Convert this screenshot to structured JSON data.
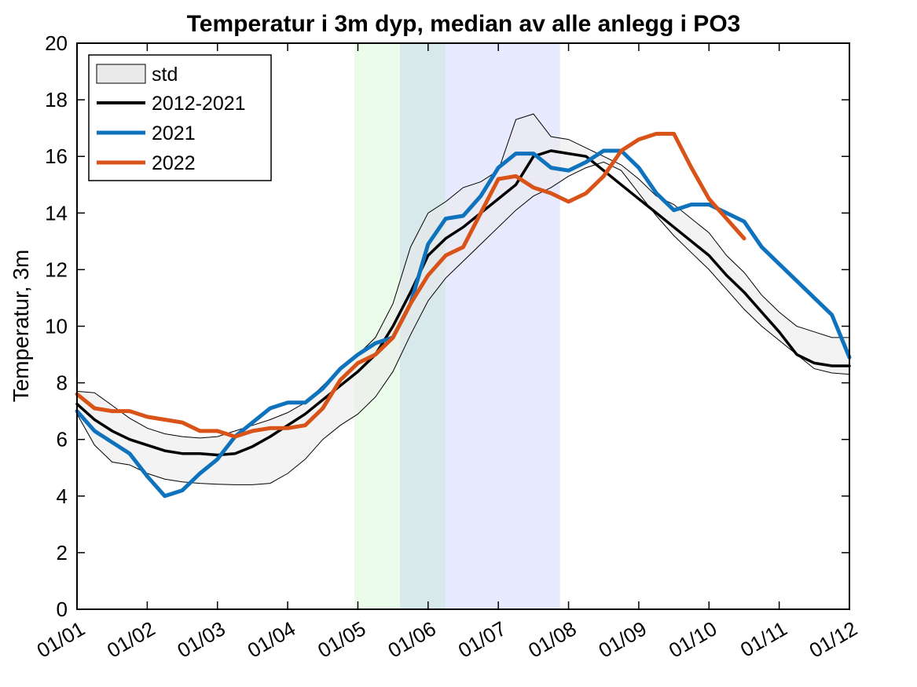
{
  "chart_data": {
    "type": "line",
    "title": "Temperatur i 3m dyp, median av alle anlegg i PO3",
    "xlabel": "",
    "ylabel": "Temperatur, 3m",
    "xlim": [
      0,
      11
    ],
    "ylim": [
      0,
      20
    ],
    "x_ticks": [
      "01/01",
      "01/02",
      "01/03",
      "01/04",
      "01/05",
      "01/06",
      "01/07",
      "01/08",
      "01/09",
      "01/10",
      "01/11",
      "01/12"
    ],
    "y_ticks": [
      0,
      2,
      4,
      6,
      8,
      10,
      12,
      14,
      16,
      18,
      20
    ],
    "legend_position": "top-left",
    "shaded_periods": [
      {
        "x0": 3.95,
        "x1": 4.6,
        "color": "#ecfcea"
      },
      {
        "x0": 4.6,
        "x1": 5.25,
        "color": "#d7e9ea"
      },
      {
        "x0": 5.25,
        "x1": 6.88,
        "color": "#e8eaff"
      }
    ],
    "std_band": {
      "name": "std",
      "color": "#e9e9e9",
      "x": [
        0,
        0.25,
        0.5,
        0.75,
        1,
        1.25,
        1.5,
        1.75,
        2,
        2.25,
        2.5,
        2.75,
        3,
        3.25,
        3.5,
        3.75,
        4,
        4.25,
        4.5,
        4.75,
        5,
        5.25,
        5.5,
        5.75,
        6,
        6.25,
        6.5,
        6.75,
        7,
        7.25,
        7.5,
        7.75,
        8,
        8.25,
        8.5,
        8.75,
        9,
        9.25,
        9.5,
        9.75,
        10,
        10.25,
        10.5,
        10.75,
        11
      ],
      "upper": [
        7.7,
        7.65,
        7.2,
        6.75,
        6.4,
        6.2,
        6.1,
        6.05,
        6.1,
        6.3,
        6.5,
        6.7,
        6.95,
        7.3,
        7.9,
        8.5,
        9.0,
        9.6,
        10.8,
        12.8,
        14.0,
        14.4,
        14.9,
        15.1,
        15.5,
        17.3,
        17.5,
        16.7,
        16.6,
        16.3,
        16.0,
        15.7,
        15.2,
        14.6,
        14.3,
        13.8,
        13.3,
        12.5,
        11.9,
        11.1,
        10.5,
        10.0,
        9.8,
        9.6,
        9.6
      ],
      "lower": [
        6.9,
        5.8,
        5.2,
        5.1,
        4.8,
        4.6,
        4.5,
        4.45,
        4.42,
        4.4,
        4.4,
        4.45,
        4.8,
        5.3,
        6.0,
        6.5,
        6.9,
        7.5,
        8.4,
        9.7,
        10.9,
        11.7,
        12.3,
        12.9,
        13.5,
        14.1,
        14.6,
        14.9,
        15.3,
        15.6,
        15.8,
        15.5,
        14.7,
        13.9,
        13.2,
        12.6,
        12.0,
        11.3,
        10.6,
        10.0,
        9.5,
        9.0,
        8.5,
        8.35,
        8.3
      ]
    },
    "series": [
      {
        "name": "2012-2021",
        "color": "#000000",
        "x": [
          0,
          0.25,
          0.5,
          0.75,
          1,
          1.25,
          1.5,
          1.75,
          2,
          2.25,
          2.5,
          2.75,
          3,
          3.25,
          3.5,
          3.75,
          4,
          4.25,
          4.5,
          4.75,
          5,
          5.25,
          5.5,
          5.75,
          6,
          6.25,
          6.5,
          6.75,
          7,
          7.25,
          7.5,
          7.75,
          8,
          8.25,
          8.5,
          8.75,
          9,
          9.25,
          9.5,
          9.75,
          10,
          10.25,
          10.5,
          10.75,
          11
        ],
        "values": [
          7.25,
          6.7,
          6.3,
          6.0,
          5.8,
          5.6,
          5.5,
          5.5,
          5.45,
          5.5,
          5.75,
          6.1,
          6.5,
          6.9,
          7.4,
          7.9,
          8.4,
          9.0,
          10.0,
          11.2,
          12.5,
          13.1,
          13.5,
          14.0,
          14.5,
          15.0,
          16.0,
          16.2,
          16.1,
          16.0,
          15.5,
          15.0,
          14.5,
          14.0,
          13.5,
          13.0,
          12.5,
          11.8,
          11.2,
          10.5,
          9.8,
          9.0,
          8.7,
          8.6,
          8.6
        ]
      },
      {
        "name": "2021",
        "color": "#0f72bd",
        "x": [
          0,
          0.25,
          0.5,
          0.75,
          1,
          1.25,
          1.5,
          1.75,
          2,
          2.25,
          2.5,
          2.75,
          3,
          3.25,
          3.5,
          3.75,
          4,
          4.25,
          4.5,
          4.75,
          5,
          5.25,
          5.5,
          5.75,
          6,
          6.25,
          6.5,
          6.75,
          7,
          7.25,
          7.5,
          7.75,
          8,
          8.25,
          8.5,
          8.75,
          9,
          9.25,
          9.5,
          9.75,
          10,
          10.25,
          10.5,
          10.75,
          11
        ],
        "values": [
          7.0,
          6.3,
          5.9,
          5.5,
          4.7,
          4.0,
          4.2,
          4.8,
          5.3,
          6.1,
          6.6,
          7.1,
          7.3,
          7.3,
          7.8,
          8.5,
          9.0,
          9.4,
          9.6,
          10.8,
          12.9,
          13.8,
          13.9,
          14.6,
          15.6,
          16.1,
          16.1,
          15.6,
          15.5,
          15.8,
          16.2,
          16.2,
          15.6,
          14.7,
          14.1,
          14.3,
          14.3,
          14.0,
          13.7,
          12.8,
          12.2,
          11.6,
          11.0,
          10.4,
          8.9
        ]
      },
      {
        "name": "2022",
        "color": "#d95319",
        "x": [
          0,
          0.25,
          0.5,
          0.75,
          1,
          1.25,
          1.5,
          1.75,
          2,
          2.25,
          2.5,
          2.75,
          3,
          3.25,
          3.5,
          3.75,
          4,
          4.25,
          4.5,
          4.75,
          5,
          5.25,
          5.5,
          5.75,
          6,
          6.25,
          6.5,
          6.75,
          7,
          7.25,
          7.5,
          7.75,
          8,
          8.25,
          8.5,
          8.75,
          9,
          9.25,
          9.5
        ],
        "values": [
          7.6,
          7.1,
          7.0,
          7.0,
          6.8,
          6.7,
          6.6,
          6.3,
          6.3,
          6.1,
          6.3,
          6.4,
          6.4,
          6.5,
          7.1,
          8.1,
          8.7,
          9.0,
          9.6,
          10.8,
          11.8,
          12.5,
          12.8,
          14.0,
          15.2,
          15.3,
          14.9,
          14.7,
          14.4,
          14.7,
          15.3,
          16.2,
          16.6,
          16.8,
          16.8,
          15.6,
          14.5,
          13.8,
          13.1
        ]
      }
    ]
  }
}
